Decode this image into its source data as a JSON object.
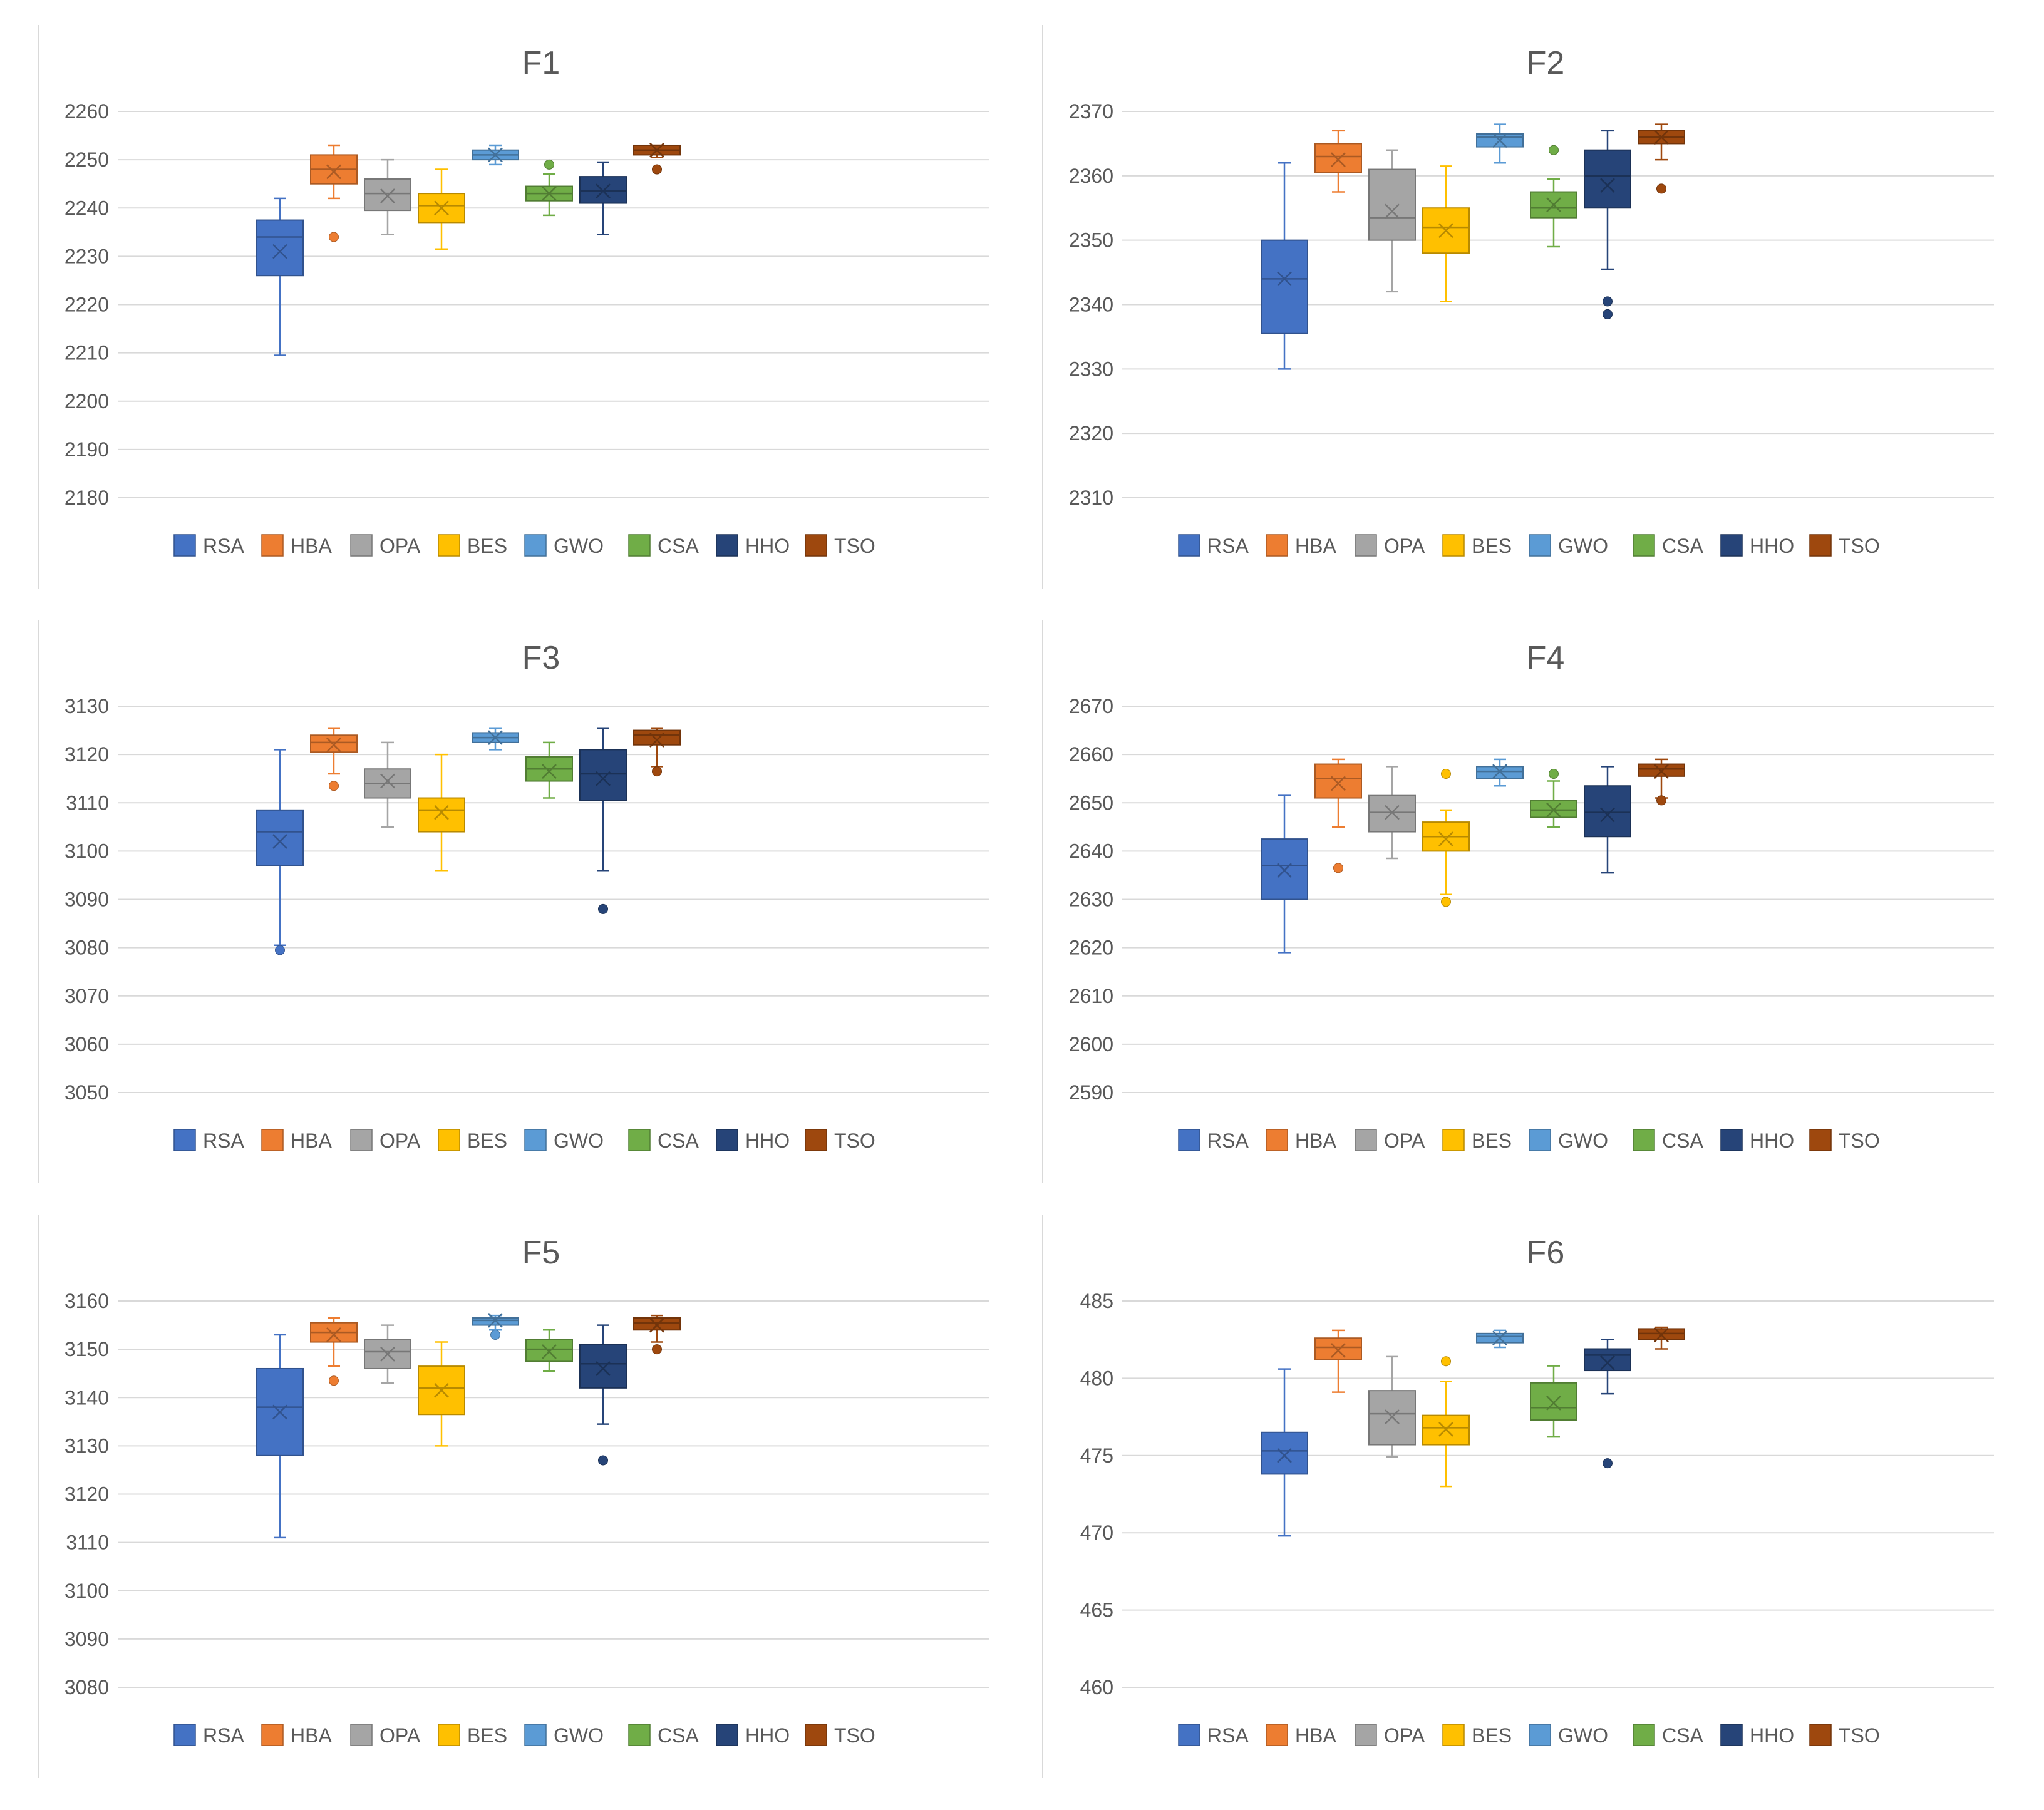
{
  "chart_data": [
    {
      "type": "box",
      "title": "F1",
      "ylim": [
        2180,
        2260
      ],
      "yticks": [
        2180,
        2190,
        2200,
        2210,
        2220,
        2230,
        2240,
        2250,
        2260
      ],
      "series": [
        {
          "name": "RSA",
          "min": 2209.5,
          "q1": 2226,
          "median": 2234,
          "q3": 2237.5,
          "max": 2242,
          "mean": 2231,
          "outliers": []
        },
        {
          "name": "HBA",
          "min": 2242,
          "q1": 2245,
          "median": 2248,
          "q3": 2251,
          "max": 2253,
          "mean": 2247.5,
          "outliers": [
            2234
          ]
        },
        {
          "name": "OPA",
          "min": 2234.5,
          "q1": 2239.5,
          "median": 2243,
          "q3": 2246,
          "max": 2250,
          "mean": 2242.5,
          "outliers": []
        },
        {
          "name": "BES",
          "min": 2231.5,
          "q1": 2237,
          "median": 2240.5,
          "q3": 2243,
          "max": 2248,
          "mean": 2240,
          "outliers": []
        },
        {
          "name": "GWO",
          "min": 2249,
          "q1": 2250,
          "median": 2251,
          "q3": 2252,
          "max": 2253,
          "mean": 2251,
          "outliers": []
        },
        {
          "name": "CSA",
          "min": 2238.5,
          "q1": 2241.5,
          "median": 2243,
          "q3": 2244.5,
          "max": 2247,
          "mean": 2243,
          "outliers": [
            2249
          ]
        },
        {
          "name": "HHO",
          "min": 2234.5,
          "q1": 2241,
          "median": 2243.5,
          "q3": 2246.5,
          "max": 2249.5,
          "mean": 2243.5,
          "outliers": []
        },
        {
          "name": "TSO",
          "min": 2250.5,
          "q1": 2251,
          "median": 2252,
          "q3": 2253,
          "max": 2253,
          "mean": 2252,
          "outliers": [
            2248
          ]
        }
      ]
    },
    {
      "type": "box",
      "title": "F2",
      "ylim": [
        2310,
        2370
      ],
      "yticks": [
        2310,
        2320,
        2330,
        2340,
        2350,
        2360,
        2370
      ],
      "series": [
        {
          "name": "RSA",
          "min": 2330,
          "q1": 2335.5,
          "median": 2344,
          "q3": 2350,
          "max": 2362,
          "mean": 2344,
          "outliers": []
        },
        {
          "name": "HBA",
          "min": 2357.5,
          "q1": 2360.5,
          "median": 2363,
          "q3": 2365,
          "max": 2367,
          "mean": 2362.5,
          "outliers": []
        },
        {
          "name": "OPA",
          "min": 2342,
          "q1": 2350,
          "median": 2353.5,
          "q3": 2361,
          "max": 2364,
          "mean": 2354.5,
          "outliers": []
        },
        {
          "name": "BES",
          "min": 2340.5,
          "q1": 2348,
          "median": 2352,
          "q3": 2355,
          "max": 2361.5,
          "mean": 2351.5,
          "outliers": []
        },
        {
          "name": "GWO",
          "min": 2362,
          "q1": 2364.5,
          "median": 2366,
          "q3": 2366.5,
          "max": 2368,
          "mean": 2365.5,
          "outliers": []
        },
        {
          "name": "CSA",
          "min": 2349,
          "q1": 2353.5,
          "median": 2355,
          "q3": 2357.5,
          "max": 2359.5,
          "mean": 2355.5,
          "outliers": [
            2364
          ]
        },
        {
          "name": "HHO",
          "min": 2345.5,
          "q1": 2355,
          "median": 2360,
          "q3": 2364,
          "max": 2367,
          "mean": 2358.5,
          "outliers": [
            2340.5,
            2338.5
          ]
        },
        {
          "name": "TSO",
          "min": 2362.5,
          "q1": 2365,
          "median": 2366,
          "q3": 2367,
          "max": 2368,
          "mean": 2366,
          "outliers": [
            2358
          ]
        }
      ]
    },
    {
      "type": "box",
      "title": "F3",
      "ylim": [
        3050,
        3130
      ],
      "yticks": [
        3050,
        3060,
        3070,
        3080,
        3090,
        3100,
        3110,
        3120,
        3130
      ],
      "series": [
        {
          "name": "RSA",
          "min": 3080.5,
          "q1": 3097,
          "median": 3104,
          "q3": 3108.5,
          "max": 3121,
          "mean": 3102,
          "outliers": [
            3079.5
          ]
        },
        {
          "name": "HBA",
          "min": 3116,
          "q1": 3120.5,
          "median": 3122.5,
          "q3": 3124,
          "max": 3125.5,
          "mean": 3122,
          "outliers": [
            3113.5
          ]
        },
        {
          "name": "OPA",
          "min": 3105,
          "q1": 3111,
          "median": 3114,
          "q3": 3117,
          "max": 3122.5,
          "mean": 3114.5,
          "outliers": []
        },
        {
          "name": "BES",
          "min": 3096,
          "q1": 3104,
          "median": 3108.5,
          "q3": 3111,
          "max": 3120,
          "mean": 3108,
          "outliers": []
        },
        {
          "name": "GWO",
          "min": 3121,
          "q1": 3122.5,
          "median": 3123.5,
          "q3": 3124.5,
          "max": 3125.5,
          "mean": 3123.5,
          "outliers": []
        },
        {
          "name": "CSA",
          "min": 3111,
          "q1": 3114.5,
          "median": 3117,
          "q3": 3119.5,
          "max": 3122.5,
          "mean": 3116.5,
          "outliers": []
        },
        {
          "name": "HHO",
          "min": 3096,
          "q1": 3110.5,
          "median": 3116,
          "q3": 3121,
          "max": 3125.5,
          "mean": 3115,
          "outliers": [
            3088
          ]
        },
        {
          "name": "TSO",
          "min": 3117.5,
          "q1": 3122,
          "median": 3124,
          "q3": 3125,
          "max": 3125.5,
          "mean": 3123,
          "outliers": [
            3116.5
          ]
        }
      ]
    },
    {
      "type": "box",
      "title": "F4",
      "ylim": [
        2590,
        2670
      ],
      "yticks": [
        2590,
        2600,
        2610,
        2620,
        2630,
        2640,
        2650,
        2660,
        2670
      ],
      "series": [
        {
          "name": "RSA",
          "min": 2619,
          "q1": 2630,
          "median": 2637,
          "q3": 2642.5,
          "max": 2651.5,
          "mean": 2636,
          "outliers": []
        },
        {
          "name": "HBA",
          "min": 2645,
          "q1": 2651,
          "median": 2655,
          "q3": 2658,
          "max": 2659,
          "mean": 2654,
          "outliers": [
            2636.5
          ]
        },
        {
          "name": "OPA",
          "min": 2638.5,
          "q1": 2644,
          "median": 2648,
          "q3": 2651.5,
          "max": 2657.5,
          "mean": 2648,
          "outliers": []
        },
        {
          "name": "BES",
          "min": 2631,
          "q1": 2640,
          "median": 2643,
          "q3": 2646,
          "max": 2648.5,
          "mean": 2642.5,
          "outliers": [
            2656,
            2629.5
          ]
        },
        {
          "name": "GWO",
          "min": 2653.5,
          "q1": 2655,
          "median": 2656.5,
          "q3": 2657.5,
          "max": 2659,
          "mean": 2656.5,
          "outliers": []
        },
        {
          "name": "CSA",
          "min": 2645,
          "q1": 2647,
          "median": 2648.5,
          "q3": 2650.5,
          "max": 2654.5,
          "mean": 2648.5,
          "outliers": [
            2656
          ]
        },
        {
          "name": "HHO",
          "min": 2635.5,
          "q1": 2643,
          "median": 2648,
          "q3": 2653.5,
          "max": 2657.5,
          "mean": 2647.5,
          "outliers": []
        },
        {
          "name": "TSO",
          "min": 2651,
          "q1": 2655.5,
          "median": 2657,
          "q3": 2658,
          "max": 2659,
          "mean": 2656.5,
          "outliers": [
            2650.5
          ]
        }
      ]
    },
    {
      "type": "box",
      "title": "F5",
      "ylim": [
        3080,
        3160
      ],
      "yticks": [
        3080,
        3090,
        3100,
        3110,
        3120,
        3130,
        3140,
        3150,
        3160
      ],
      "series": [
        {
          "name": "RSA",
          "min": 3111,
          "q1": 3128,
          "median": 3138,
          "q3": 3146,
          "max": 3153,
          "mean": 3137,
          "outliers": []
        },
        {
          "name": "HBA",
          "min": 3146.5,
          "q1": 3151.5,
          "median": 3153.5,
          "q3": 3155.5,
          "max": 3156.5,
          "mean": 3153,
          "outliers": [
            3143.5
          ]
        },
        {
          "name": "OPA",
          "min": 3143,
          "q1": 3146,
          "median": 3149.5,
          "q3": 3152,
          "max": 3155,
          "mean": 3149,
          "outliers": []
        },
        {
          "name": "BES",
          "min": 3130,
          "q1": 3136.5,
          "median": 3142,
          "q3": 3146.5,
          "max": 3151.5,
          "mean": 3141.5,
          "outliers": []
        },
        {
          "name": "GWO",
          "min": 3154,
          "q1": 3155,
          "median": 3156,
          "q3": 3156.5,
          "max": 3157,
          "mean": 3156,
          "outliers": [
            3153
          ]
        },
        {
          "name": "CSA",
          "min": 3145.5,
          "q1": 3147.5,
          "median": 3150,
          "q3": 3152,
          "max": 3154,
          "mean": 3149.5,
          "outliers": []
        },
        {
          "name": "HHO",
          "min": 3134.5,
          "q1": 3142,
          "median": 3147,
          "q3": 3151,
          "max": 3155,
          "mean": 3146,
          "outliers": [
            3127
          ]
        },
        {
          "name": "TSO",
          "min": 3151.5,
          "q1": 3154,
          "median": 3155.5,
          "q3": 3156.5,
          "max": 3157,
          "mean": 3155,
          "outliers": [
            3150
          ]
        }
      ]
    },
    {
      "type": "box",
      "title": "F6",
      "ylim": [
        460,
        485
      ],
      "yticks": [
        460,
        465,
        470,
        475,
        480,
        485
      ],
      "series": [
        {
          "name": "RSA",
          "min": 469.8,
          "q1": 473.8,
          "median": 475.3,
          "q3": 476.5,
          "max": 480.6,
          "mean": 475,
          "outliers": []
        },
        {
          "name": "HBA",
          "min": 479.1,
          "q1": 481.2,
          "median": 482,
          "q3": 482.6,
          "max": 483.1,
          "mean": 481.8,
          "outliers": []
        },
        {
          "name": "OPA",
          "min": 474.9,
          "q1": 475.7,
          "median": 477.7,
          "q3": 479.2,
          "max": 481.4,
          "mean": 477.5,
          "outliers": []
        },
        {
          "name": "BES",
          "min": 473,
          "q1": 475.7,
          "median": 476.8,
          "q3": 477.6,
          "max": 479.8,
          "mean": 476.7,
          "outliers": [
            481.1
          ]
        },
        {
          "name": "GWO",
          "min": 482,
          "q1": 482.3,
          "median": 482.7,
          "q3": 482.9,
          "max": 483.1,
          "mean": 482.6,
          "outliers": []
        },
        {
          "name": "CSA",
          "min": 476.2,
          "q1": 477.3,
          "median": 478.1,
          "q3": 479.7,
          "max": 480.8,
          "mean": 478.4,
          "outliers": []
        },
        {
          "name": "HHO",
          "min": 479,
          "q1": 480.5,
          "median": 481.5,
          "q3": 481.9,
          "max": 482.5,
          "mean": 481,
          "outliers": [
            474.5
          ]
        },
        {
          "name": "TSO",
          "min": 481.9,
          "q1": 482.5,
          "median": 482.9,
          "q3": 483.2,
          "max": 483.3,
          "mean": 482.8,
          "outliers": []
        }
      ]
    }
  ],
  "legend": [
    {
      "name": "RSA",
      "color": "#4472C4"
    },
    {
      "name": "HBA",
      "color": "#ED7D31"
    },
    {
      "name": "OPA",
      "color": "#A5A5A5"
    },
    {
      "name": "BES",
      "color": "#FFC000"
    },
    {
      "name": "GWO",
      "color": "#5B9BD5"
    },
    {
      "name": "CSA",
      "color": "#70AD47"
    },
    {
      "name": "HHO",
      "color": "#264478"
    },
    {
      "name": "TSO",
      "color": "#9E480E"
    }
  ]
}
